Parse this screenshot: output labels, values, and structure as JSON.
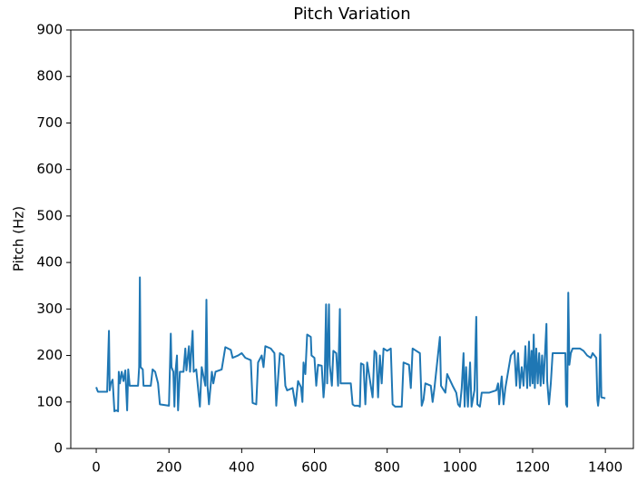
{
  "chart_data": {
    "type": "line",
    "title": "Pitch Variation",
    "y_label": "Pitch (Hz)",
    "x": [
      0,
      3,
      5,
      30,
      35,
      37,
      40,
      45,
      50,
      55,
      60,
      62,
      65,
      70,
      75,
      80,
      85,
      88,
      92,
      115,
      118,
      120,
      122,
      128,
      130,
      150,
      155,
      162,
      170,
      175,
      200,
      205,
      207,
      212,
      215,
      218,
      222,
      225,
      230,
      240,
      245,
      248,
      255,
      258,
      265,
      268,
      275,
      280,
      285,
      290,
      300,
      303,
      306,
      310,
      318,
      322,
      328,
      345,
      355,
      370,
      375,
      390,
      400,
      410,
      425,
      430,
      440,
      445,
      455,
      460,
      465,
      480,
      490,
      495,
      500,
      505,
      515,
      520,
      525,
      540,
      548,
      555,
      563,
      567,
      570,
      575,
      580,
      590,
      592,
      600,
      605,
      610,
      620,
      625,
      628,
      632,
      635,
      640,
      642,
      648,
      652,
      660,
      665,
      670,
      672,
      700,
      705,
      710,
      720,
      725,
      728,
      735,
      740,
      745,
      760,
      765,
      770,
      775,
      780,
      785,
      790,
      800,
      810,
      815,
      822,
      840,
      845,
      860,
      865,
      870,
      880,
      890,
      895,
      900,
      905,
      920,
      925,
      930,
      945,
      948,
      960,
      965,
      980,
      990,
      995,
      1000,
      1005,
      1010,
      1013,
      1017,
      1022,
      1028,
      1032,
      1040,
      1045,
      1048,
      1055,
      1060,
      1080,
      1100,
      1105,
      1108,
      1112,
      1115,
      1120,
      1125,
      1140,
      1150,
      1155,
      1160,
      1165,
      1170,
      1175,
      1180,
      1185,
      1190,
      1193,
      1197,
      1200,
      1203,
      1206,
      1210,
      1214,
      1218,
      1222,
      1226,
      1230,
      1238,
      1240,
      1245,
      1250,
      1255,
      1290,
      1292,
      1295,
      1298,
      1301,
      1305,
      1310,
      1330,
      1340,
      1350,
      1360,
      1365,
      1375,
      1378,
      1380,
      1383,
      1386,
      1389,
      1400
    ],
    "series": [
      {
        "color": "#1f77b4",
        "values": [
          132,
          125,
          122,
          122,
          253,
          125,
          140,
          148,
          80,
          82,
          80,
          165,
          140,
          165,
          145,
          168,
          82,
          170,
          135,
          135,
          175,
          368,
          175,
          170,
          135,
          135,
          170,
          165,
          140,
          95,
          92,
          247,
          175,
          165,
          90,
          165,
          200,
          82,
          165,
          165,
          215,
          168,
          220,
          165,
          253,
          165,
          170,
          130,
          90,
          175,
          135,
          320,
          135,
          95,
          165,
          140,
          165,
          170,
          218,
          212,
          195,
          200,
          205,
          195,
          190,
          98,
          95,
          185,
          200,
          175,
          220,
          215,
          205,
          92,
          150,
          205,
          200,
          135,
          125,
          130,
          92,
          145,
          132,
          100,
          185,
          160,
          245,
          240,
          200,
          195,
          135,
          180,
          178,
          110,
          140,
          310,
          140,
          310,
          180,
          135,
          210,
          205,
          135,
          300,
          140,
          140,
          95,
          92,
          92,
          90,
          183,
          180,
          95,
          185,
          110,
          210,
          205,
          110,
          200,
          140,
          215,
          210,
          215,
          95,
          90,
          90,
          185,
          180,
          130,
          215,
          210,
          205,
          92,
          105,
          140,
          135,
          100,
          130,
          240,
          135,
          120,
          160,
          135,
          120,
          95,
          90,
          130,
          205,
          90,
          175,
          90,
          185,
          90,
          125,
          283,
          95,
          90,
          120,
          120,
          125,
          140,
          95,
          135,
          155,
          95,
          130,
          200,
          210,
          135,
          205,
          130,
          175,
          135,
          220,
          130,
          230,
          135,
          210,
          140,
          245,
          130,
          215,
          140,
          205,
          135,
          200,
          140,
          268,
          145,
          95,
          140,
          205,
          205,
          95,
          90,
          335,
          180,
          205,
          215,
          215,
          210,
          200,
          195,
          205,
          195,
          105,
          92,
          115,
          245,
          110,
          108
        ]
      }
    ],
    "xlim": [
      -70,
      1477
    ],
    "xticks": [
      0,
      200,
      400,
      600,
      800,
      1000,
      1200,
      1400
    ],
    "ylim": [
      0,
      900
    ],
    "yticks": [
      0,
      100,
      200,
      300,
      400,
      500,
      600,
      700,
      800,
      900
    ]
  }
}
